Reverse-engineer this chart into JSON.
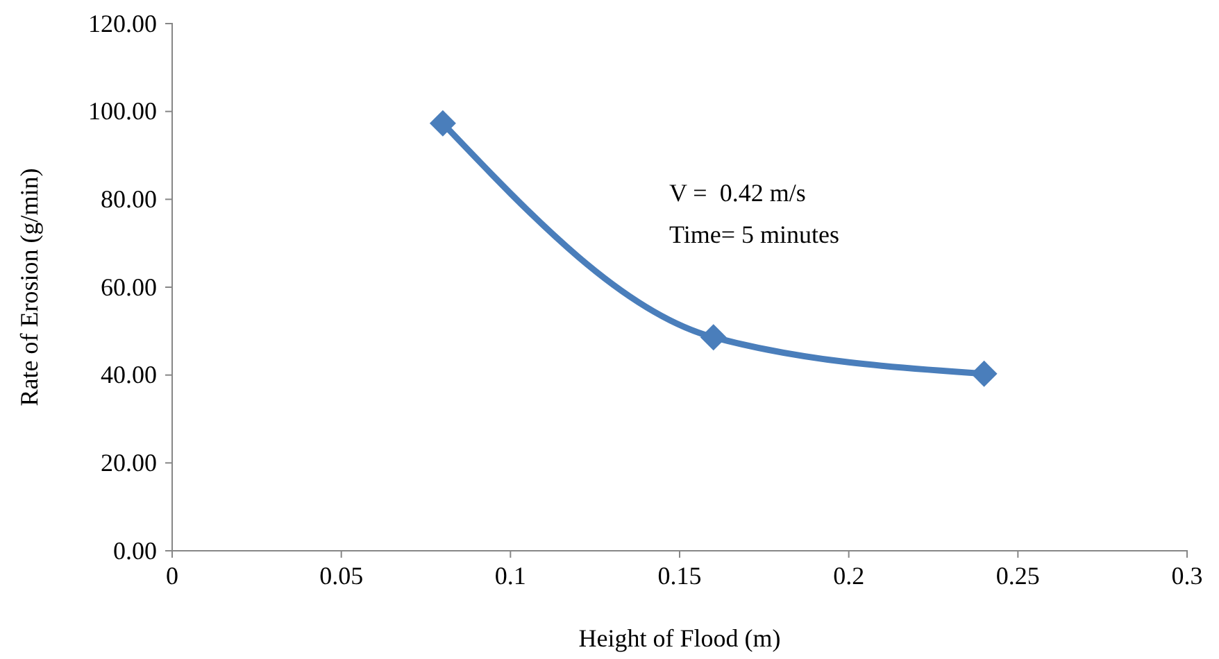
{
  "chart_data": {
    "type": "line",
    "xlabel": "Height of Flood (m)",
    "ylabel": "Rate of Erosion (g/min)",
    "x": [
      0.08,
      0.16,
      0.24
    ],
    "series": [
      {
        "color": "#4a7ebb",
        "values": [
          97.3,
          48.6,
          40.3
        ]
      }
    ],
    "xlim": [
      0,
      0.3
    ],
    "xticks": [
      0,
      0.05,
      0.1,
      0.15,
      0.2,
      0.25,
      0.3
    ],
    "ylim": [
      0,
      120
    ],
    "yticks": [
      {
        "value": 0,
        "label": "0.00"
      },
      {
        "value": 20,
        "label": "20.00"
      },
      {
        "value": 40,
        "label": "40.00"
      },
      {
        "value": 60,
        "label": "60.00"
      },
      {
        "value": 80,
        "label": "80.00"
      },
      {
        "value": 100,
        "label": "100.00"
      },
      {
        "value": 120,
        "label": "120.00"
      }
    ],
    "marker": "diamond",
    "grid": false,
    "annotations": [
      "V =  0.42 m/s",
      "Time= 5 minutes"
    ]
  }
}
